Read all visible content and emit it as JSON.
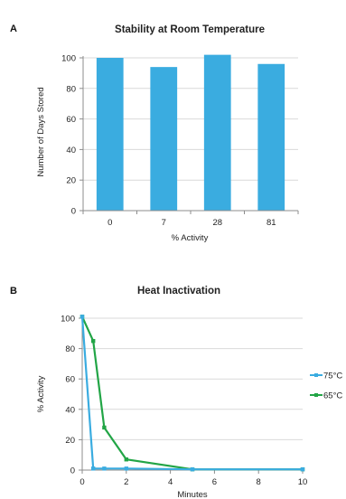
{
  "chart_data": [
    {
      "panel": "A",
      "type": "bar",
      "title": "Stability  at Room Temperature",
      "xlabel": "% Activity",
      "ylabel": "Number of Days Stored",
      "categories": [
        "0",
        "7",
        "28",
        "81"
      ],
      "values": [
        100,
        94,
        102,
        96
      ],
      "ylim": [
        0,
        100
      ],
      "yticks": [
        0,
        20,
        40,
        60,
        80,
        100
      ],
      "grid": true,
      "color": "#3aace0"
    },
    {
      "panel": "B",
      "type": "line",
      "title": "Heat Inactivation",
      "xlabel": "Minutes",
      "ylabel": "% Activity",
      "xlim": [
        0,
        10
      ],
      "ylim": [
        0,
        100
      ],
      "xticks": [
        0,
        2,
        4,
        6,
        8,
        10
      ],
      "yticks": [
        0,
        20,
        40,
        60,
        80,
        100
      ],
      "grid": true,
      "legend": "right",
      "series": [
        {
          "name": "75°C",
          "color": "#3aace0",
          "x": [
            0,
            0.5,
            1,
            2,
            5,
            10
          ],
          "y": [
            101,
            1,
            1,
            1,
            0.5,
            0.5
          ]
        },
        {
          "name": "65°C",
          "color": "#22a546",
          "x": [
            0,
            0.5,
            1,
            2,
            5,
            10
          ],
          "y": [
            101,
            85,
            28,
            7,
            0.5,
            0.5
          ]
        }
      ]
    }
  ]
}
